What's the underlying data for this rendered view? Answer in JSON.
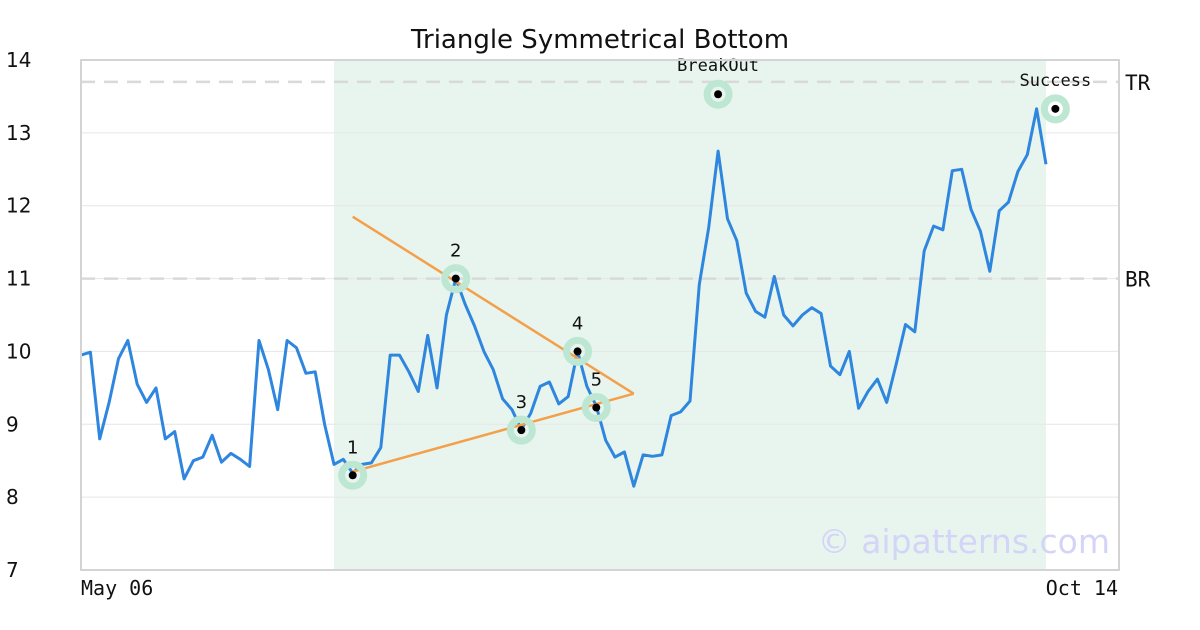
{
  "chart_data": {
    "type": "line",
    "title": "Triangle Symmetrical Bottom",
    "ylim": [
      7,
      14
    ],
    "yticks": [
      "7",
      "8",
      "9",
      "10",
      "11",
      "12",
      "13",
      "14"
    ],
    "x_labels": [
      "May 06",
      "Oct 14"
    ],
    "grid": true,
    "series": [
      {
        "color": "#2e86de",
        "values": [
          9.95,
          9.99,
          8.8,
          9.3,
          9.9,
          10.15,
          9.55,
          9.3,
          9.5,
          8.8,
          8.9,
          8.25,
          8.5,
          8.55,
          8.85,
          8.48,
          8.6,
          8.52,
          8.42,
          10.15,
          9.75,
          9.2,
          10.15,
          10.05,
          9.7,
          9.72,
          9.0,
          8.45,
          8.52,
          8.33,
          8.45,
          8.47,
          8.68,
          9.95,
          9.95,
          9.72,
          9.45,
          10.22,
          9.5,
          10.5,
          11.0,
          10.65,
          10.35,
          10.0,
          9.75,
          9.35,
          9.2,
          8.93,
          9.15,
          9.52,
          9.58,
          9.28,
          9.38,
          10.0,
          9.52,
          9.25,
          8.78,
          8.55,
          8.62,
          8.15,
          8.58,
          8.56,
          8.58,
          9.12,
          9.17,
          9.32,
          10.92,
          11.7,
          12.75,
          11.82,
          11.52,
          10.8,
          10.55,
          10.47,
          11.03,
          10.5,
          10.35,
          10.5,
          10.6,
          10.52,
          9.8,
          9.68,
          10.0,
          9.22,
          9.45,
          9.62,
          9.3,
          9.82,
          10.37,
          10.27,
          11.38,
          11.72,
          11.67,
          12.48,
          12.5,
          11.95,
          11.65,
          11.1,
          11.93,
          12.05,
          12.47,
          12.7,
          13.33,
          12.57
        ]
      }
    ],
    "pattern_lines": {
      "color": "#f4a04a",
      "upper": {
        "from": [
          29,
          11.85
        ],
        "to": [
          59,
          9.42
        ]
      },
      "lower": {
        "from": [
          29,
          8.35
        ],
        "to": [
          59,
          9.42
        ]
      }
    },
    "levels": [
      {
        "label": "TR",
        "value": 13.7
      },
      {
        "label": "BR",
        "value": 11.0
      }
    ],
    "pattern_region": {
      "start": 27,
      "end": 103,
      "color": "#e8f5ef"
    },
    "points": [
      {
        "label": "1",
        "x": 29,
        "y": 8.3
      },
      {
        "label": "2",
        "x": 40,
        "y": 11.0
      },
      {
        "label": "3",
        "x": 47,
        "y": 8.92
      },
      {
        "label": "4",
        "x": 53,
        "y": 10.0
      },
      {
        "label": "5",
        "x": 55,
        "y": 9.23
      }
    ],
    "annotations": [
      {
        "label": "BreakOut",
        "x": 68,
        "y": 13.53
      },
      {
        "label": "Success",
        "x": 104,
        "y": 13.33
      }
    ],
    "marker_color": "#bde7d2",
    "watermark": "© aipatterns.com",
    "watermark_color": "#d4d4f7"
  }
}
